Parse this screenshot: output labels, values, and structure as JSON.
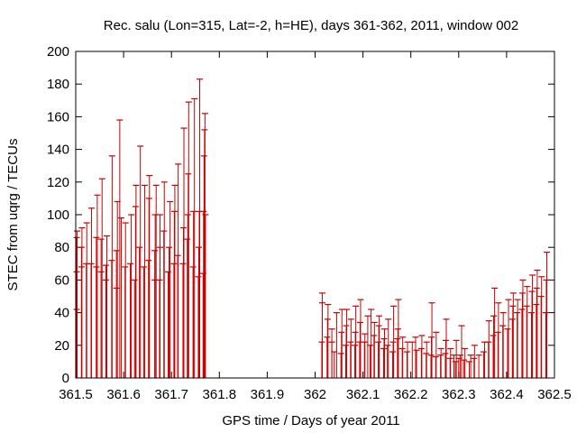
{
  "chart_data": {
    "type": "scatter",
    "title": "Rec. salu (Lon=315, Lat=-2, h=HE), days 361-362, 2011, window 002",
    "xlabel": "GPS time / Days of year 2011",
    "ylabel": "STEC from uqrg / TECUs",
    "xlim": [
      361.5,
      362.5
    ],
    "ylim": [
      0,
      200
    ],
    "xticks": [
      361.5,
      361.6,
      361.7,
      361.8,
      361.9,
      362.0,
      362.1,
      362.2,
      362.3,
      362.4,
      362.5
    ],
    "xtick_labels": [
      "361.5",
      "361.6",
      "361.7",
      "361.8",
      "361.9",
      "362",
      "362.1",
      "362.2",
      "362.3",
      "362.4",
      "362.5"
    ],
    "yticks": [
      0,
      20,
      40,
      60,
      80,
      100,
      120,
      140,
      160,
      180,
      200
    ],
    "ytick_labels": [
      "0",
      "20",
      "40",
      "60",
      "80",
      "100",
      "120",
      "140",
      "160",
      "180",
      "200"
    ],
    "grid": false,
    "legend": "none",
    "style": {
      "color": "#cc0000",
      "errorbars": "to zero",
      "marker": "cross tick"
    },
    "points": [
      [
        361.502,
        42
      ],
      [
        361.502,
        65
      ],
      [
        361.502,
        86
      ],
      [
        361.503,
        90
      ],
      [
        361.512,
        68
      ],
      [
        361.512,
        80
      ],
      [
        361.513,
        92
      ],
      [
        361.522,
        70
      ],
      [
        361.523,
        95
      ],
      [
        361.532,
        70
      ],
      [
        361.533,
        104
      ],
      [
        361.543,
        68
      ],
      [
        361.543,
        86
      ],
      [
        361.545,
        112
      ],
      [
        361.553,
        65
      ],
      [
        361.553,
        85
      ],
      [
        361.555,
        122
      ],
      [
        361.563,
        60
      ],
      [
        361.563,
        69
      ],
      [
        361.565,
        87
      ],
      [
        361.575,
        72
      ],
      [
        361.576,
        136
      ],
      [
        361.585,
        55
      ],
      [
        361.585,
        78
      ],
      [
        361.587,
        108
      ],
      [
        361.592,
        158
      ],
      [
        361.595,
        98
      ],
      [
        361.603,
        68
      ],
      [
        361.604,
        95
      ],
      [
        361.614,
        70
      ],
      [
        361.616,
        100
      ],
      [
        361.623,
        60
      ],
      [
        361.625,
        105
      ],
      [
        361.626,
        118
      ],
      [
        361.633,
        80
      ],
      [
        361.635,
        142
      ],
      [
        361.642,
        68
      ],
      [
        361.644,
        118
      ],
      [
        361.652,
        72
      ],
      [
        361.653,
        110
      ],
      [
        361.654,
        124
      ],
      [
        361.665,
        60
      ],
      [
        361.665,
        78
      ],
      [
        361.666,
        100
      ],
      [
        361.668,
        118
      ],
      [
        361.675,
        60
      ],
      [
        361.676,
        80
      ],
      [
        361.676,
        100
      ],
      [
        361.684,
        90
      ],
      [
        361.685,
        120
      ],
      [
        361.693,
        65
      ],
      [
        361.695,
        80
      ],
      [
        361.697,
        108
      ],
      [
        361.705,
        70
      ],
      [
        361.706,
        102
      ],
      [
        361.707,
        118
      ],
      [
        361.713,
        75
      ],
      [
        361.714,
        131
      ],
      [
        361.724,
        70
      ],
      [
        361.725,
        92
      ],
      [
        361.726,
        153
      ],
      [
        361.733,
        85
      ],
      [
        361.734,
        100
      ],
      [
        361.735,
        125
      ],
      [
        361.736,
        169
      ],
      [
        361.745,
        68
      ],
      [
        361.746,
        102
      ],
      [
        361.748,
        171
      ],
      [
        361.756,
        62
      ],
      [
        361.757,
        80
      ],
      [
        361.758,
        102
      ],
      [
        361.759,
        183
      ],
      [
        361.766,
        64
      ],
      [
        361.767,
        102
      ],
      [
        361.768,
        136
      ],
      [
        361.769,
        152
      ],
      [
        361.77,
        162
      ],
      [
        361.771,
        100
      ],
      [
        362.014,
        22
      ],
      [
        362.015,
        46
      ],
      [
        362.015,
        52
      ],
      [
        362.025,
        25
      ],
      [
        362.026,
        36
      ],
      [
        362.027,
        45
      ],
      [
        362.035,
        22
      ],
      [
        362.035,
        30
      ],
      [
        362.04,
        16
      ],
      [
        362.045,
        40
      ],
      [
        362.054,
        15
      ],
      [
        362.055,
        28
      ],
      [
        362.056,
        42
      ],
      [
        362.064,
        20
      ],
      [
        362.065,
        32
      ],
      [
        362.066,
        42
      ],
      [
        362.074,
        22
      ],
      [
        362.075,
        36
      ],
      [
        362.083,
        20
      ],
      [
        362.084,
        28
      ],
      [
        362.085,
        44
      ],
      [
        362.093,
        22
      ],
      [
        362.094,
        34
      ],
      [
        362.095,
        48
      ],
      [
        362.103,
        22
      ],
      [
        362.104,
        27
      ],
      [
        362.11,
        38
      ],
      [
        362.115,
        20
      ],
      [
        362.117,
        42
      ],
      [
        362.123,
        26
      ],
      [
        362.124,
        34
      ],
      [
        362.132,
        22
      ],
      [
        362.133,
        32
      ],
      [
        362.134,
        38
      ],
      [
        362.143,
        18
      ],
      [
        362.144,
        24
      ],
      [
        362.145,
        30
      ],
      [
        362.151,
        20
      ],
      [
        362.153,
        36
      ],
      [
        362.162,
        16
      ],
      [
        362.163,
        22
      ],
      [
        362.164,
        44
      ],
      [
        362.172,
        24
      ],
      [
        362.173,
        30
      ],
      [
        362.174,
        48
      ],
      [
        362.182,
        18
      ],
      [
        362.183,
        25
      ],
      [
        362.192,
        16
      ],
      [
        362.193,
        22
      ],
      [
        362.203,
        22
      ],
      [
        362.21,
        25
      ],
      [
        362.212,
        17
      ],
      [
        362.222,
        18
      ],
      [
        362.223,
        26
      ],
      [
        362.232,
        15
      ],
      [
        362.233,
        22
      ],
      [
        362.242,
        14
      ],
      [
        362.243,
        25
      ],
      [
        362.244,
        46
      ],
      [
        362.252,
        13
      ],
      [
        362.253,
        28
      ],
      [
        362.262,
        14
      ],
      [
        362.263,
        18
      ],
      [
        362.272,
        15
      ],
      [
        362.273,
        23
      ],
      [
        362.274,
        36
      ],
      [
        362.282,
        12
      ],
      [
        362.283,
        18
      ],
      [
        362.29,
        14
      ],
      [
        362.293,
        10
      ],
      [
        362.295,
        23
      ],
      [
        362.3,
        12
      ],
      [
        362.303,
        14
      ],
      [
        362.306,
        32
      ],
      [
        362.311,
        11
      ],
      [
        362.313,
        18
      ],
      [
        362.322,
        10
      ],
      [
        362.325,
        14
      ],
      [
        362.332,
        12
      ],
      [
        362.333,
        20
      ],
      [
        362.342,
        14
      ],
      [
        362.352,
        16
      ],
      [
        362.354,
        22
      ],
      [
        362.362,
        22
      ],
      [
        362.363,
        35
      ],
      [
        362.372,
        26
      ],
      [
        362.373,
        38
      ],
      [
        362.375,
        55
      ],
      [
        362.382,
        28
      ],
      [
        362.383,
        46
      ],
      [
        362.392,
        32
      ],
      [
        362.393,
        40
      ],
      [
        362.402,
        30
      ],
      [
        362.404,
        48
      ],
      [
        362.412,
        36
      ],
      [
        362.413,
        44
      ],
      [
        362.414,
        52
      ],
      [
        362.422,
        40
      ],
      [
        362.423,
        48
      ],
      [
        362.432,
        42
      ],
      [
        362.433,
        52
      ],
      [
        362.434,
        60
      ],
      [
        362.442,
        44
      ],
      [
        362.443,
        56
      ],
      [
        362.452,
        40
      ],
      [
        362.453,
        53
      ],
      [
        362.454,
        63
      ],
      [
        362.462,
        45
      ],
      [
        362.463,
        55
      ],
      [
        362.464,
        66
      ],
      [
        362.472,
        50
      ],
      [
        362.473,
        62
      ],
      [
        362.482,
        40
      ],
      [
        362.483,
        60
      ],
      [
        362.484,
        77
      ]
    ]
  }
}
